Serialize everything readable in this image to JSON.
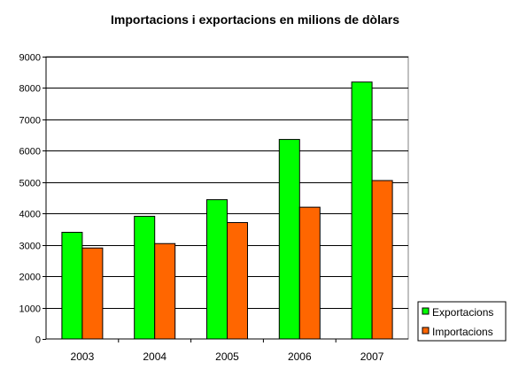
{
  "chart_data": {
    "type": "bar",
    "title": "Importacions i exportacions en milions de dòlars",
    "xlabel": "",
    "ylabel": "",
    "categories": [
      "2003",
      "2004",
      "2005",
      "2006",
      "2007"
    ],
    "series": [
      {
        "name": "Exportacions",
        "color": "#00ff00",
        "values": [
          3400,
          3910,
          4440,
          6360,
          8190
        ]
      },
      {
        "name": "Importacions",
        "color": "#ff6600",
        "values": [
          2900,
          3040,
          3710,
          4200,
          5050
        ]
      }
    ],
    "ylim": [
      0,
      9000
    ],
    "yticks": [
      0,
      1000,
      2000,
      3000,
      4000,
      5000,
      6000,
      7000,
      8000,
      9000
    ],
    "grid": true,
    "legend": "right"
  }
}
